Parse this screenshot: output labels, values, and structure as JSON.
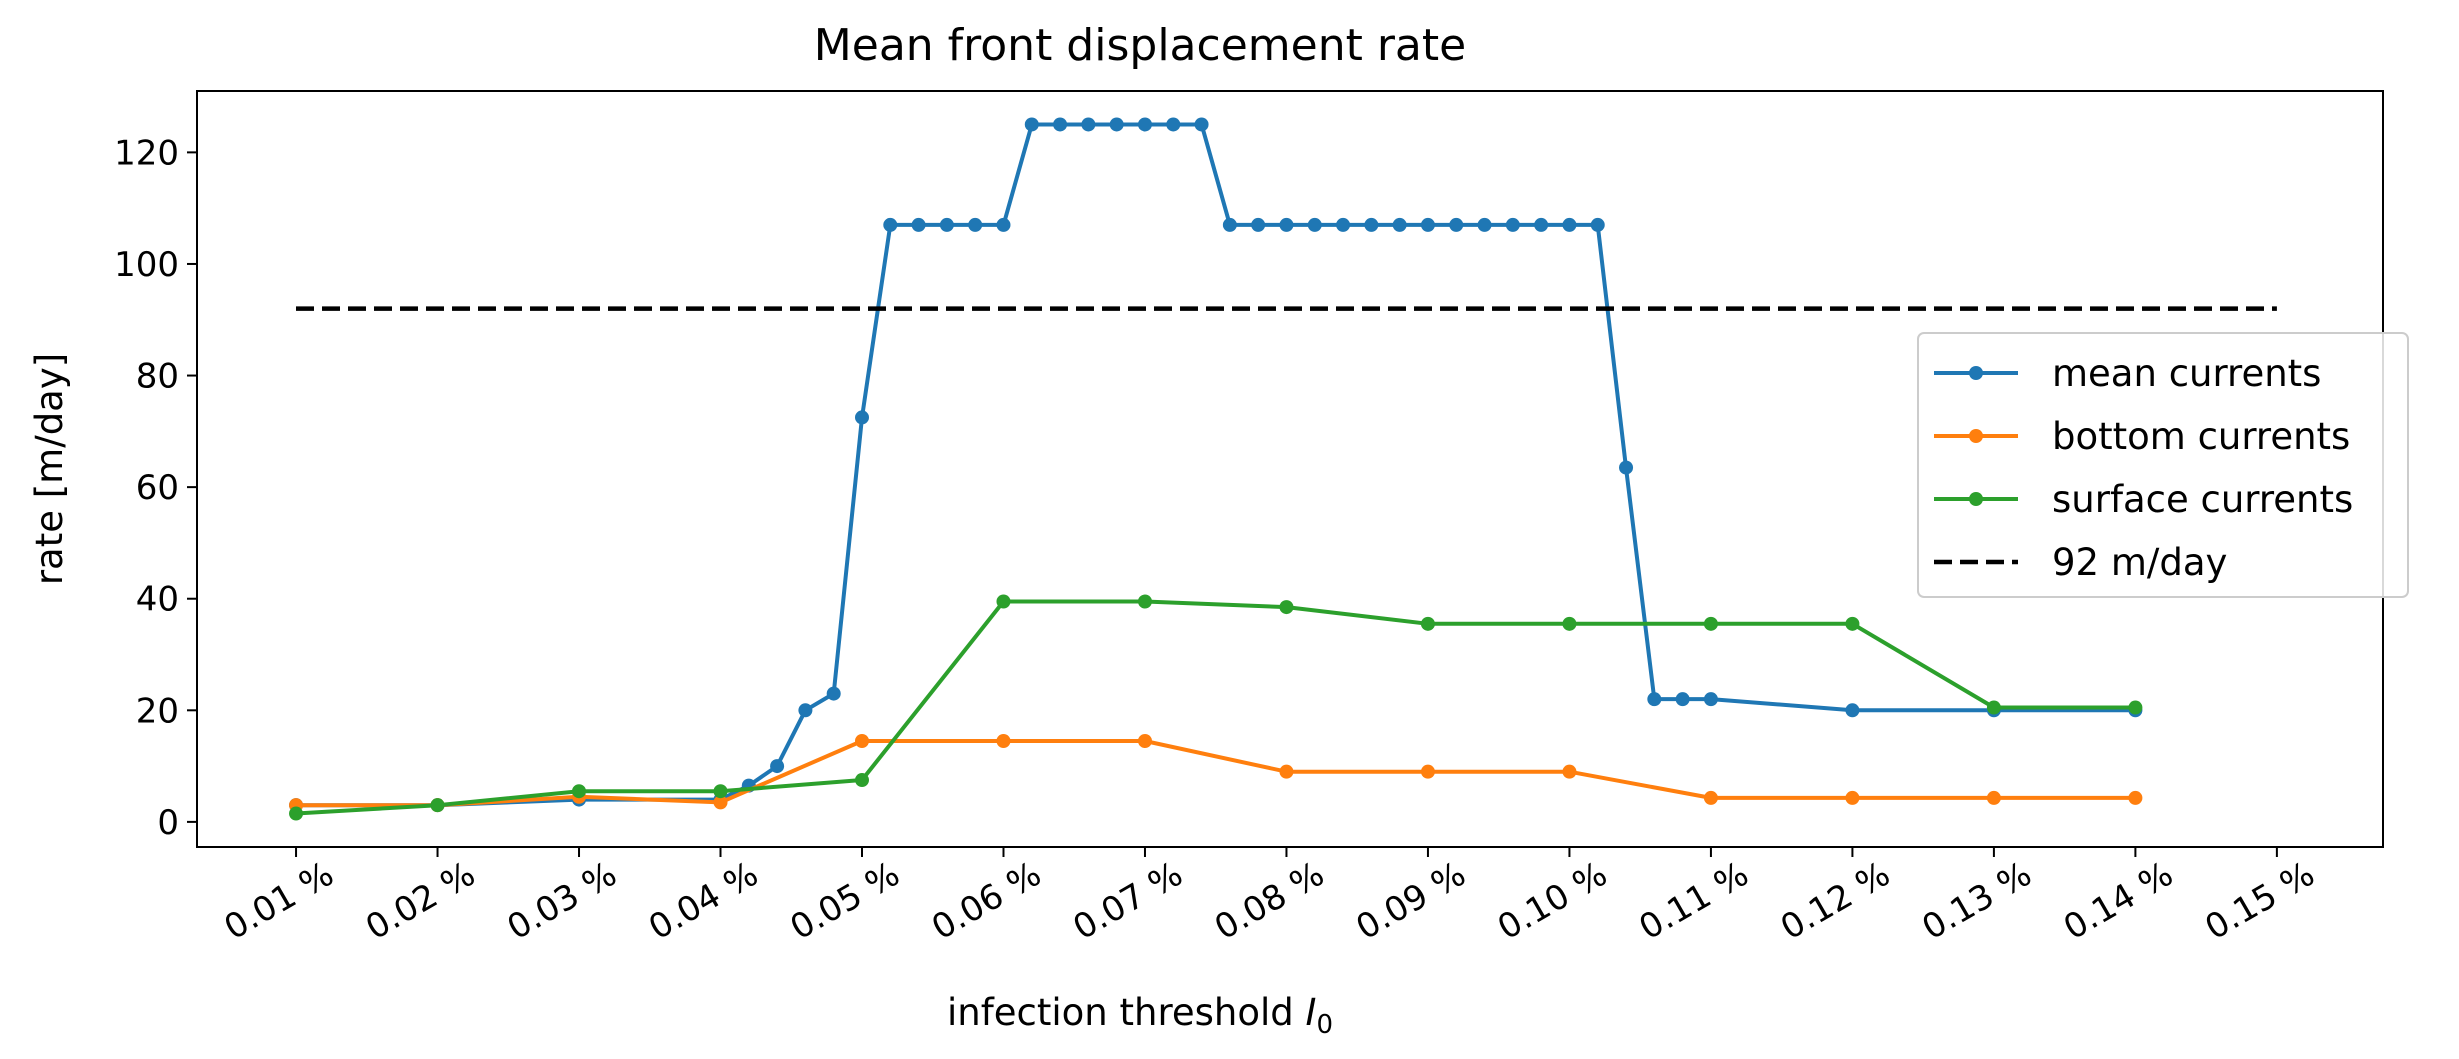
{
  "chart_data": {
    "type": "line",
    "title": "Mean front displacement rate",
    "xlabel": "infection threshold",
    "xlabel_symbol": "I",
    "xlabel_subscript": "0",
    "ylabel": "rate [m/day]",
    "x_unit": "%",
    "xlim": [
      0.003,
      0.1575
    ],
    "ylim": [
      -4.5,
      131
    ],
    "xticks": [
      "0.01 %",
      "0.02 %",
      "0.03 %",
      "0.04 %",
      "0.05 %",
      "0.06 %",
      "0.07 %",
      "0.08 %",
      "0.09 %",
      "0.10 %",
      "0.11 %",
      "0.12 %",
      "0.13 %",
      "0.14 %",
      "0.15 %"
    ],
    "xtick_values": [
      0.01,
      0.02,
      0.03,
      0.04,
      0.05,
      0.06,
      0.07,
      0.08,
      0.09,
      0.1,
      0.11,
      0.12,
      0.13,
      0.14,
      0.15
    ],
    "yticks": [
      0,
      20,
      40,
      60,
      80,
      100,
      120
    ],
    "grid": false,
    "legend_position": "center-right",
    "series": [
      {
        "name": "mean currents",
        "color": "#1f77b4",
        "marker": "circle",
        "x": [
          0.01,
          0.02,
          0.03,
          0.04,
          0.042,
          0.044,
          0.046,
          0.048,
          0.05,
          0.052,
          0.054,
          0.056,
          0.058,
          0.06,
          0.062,
          0.064,
          0.066,
          0.068,
          0.07,
          0.072,
          0.074,
          0.076,
          0.078,
          0.08,
          0.082,
          0.084,
          0.086,
          0.088,
          0.09,
          0.092,
          0.094,
          0.096,
          0.098,
          0.1,
          0.102,
          0.104,
          0.106,
          0.108,
          0.11,
          0.12,
          0.13,
          0.14
        ],
        "y": [
          3,
          3,
          4,
          4,
          6.5,
          10,
          20,
          23,
          72.5,
          107,
          107,
          107,
          107,
          107,
          125,
          125,
          125,
          125,
          125,
          125,
          125,
          107,
          107,
          107,
          107,
          107,
          107,
          107,
          107,
          107,
          107,
          107,
          107,
          107,
          107,
          63.5,
          22,
          22,
          22,
          20,
          20,
          20
        ]
      },
      {
        "name": "bottom currents",
        "color": "#ff7f0e",
        "marker": "circle",
        "x": [
          0.01,
          0.02,
          0.03,
          0.04,
          0.05,
          0.06,
          0.07,
          0.08,
          0.09,
          0.1,
          0.11,
          0.12,
          0.13,
          0.14
        ],
        "y": [
          3,
          3,
          4.5,
          3.5,
          14.5,
          14.5,
          14.5,
          9,
          9,
          9,
          4.3,
          4.3,
          4.3,
          4.3
        ]
      },
      {
        "name": "surface currents",
        "color": "#2ca02c",
        "marker": "circle",
        "x": [
          0.01,
          0.02,
          0.03,
          0.04,
          0.05,
          0.06,
          0.07,
          0.08,
          0.09,
          0.1,
          0.11,
          0.12,
          0.13,
          0.14
        ],
        "y": [
          1.5,
          3,
          5.5,
          5.5,
          7.5,
          39.5,
          39.5,
          38.5,
          35.5,
          35.5,
          35.5,
          35.5,
          20.5,
          20.5
        ]
      },
      {
        "name": "92 m/day",
        "color": "#000000",
        "style": "dashed",
        "x": [
          0.01,
          0.15
        ],
        "y": [
          92,
          92
        ]
      }
    ]
  }
}
